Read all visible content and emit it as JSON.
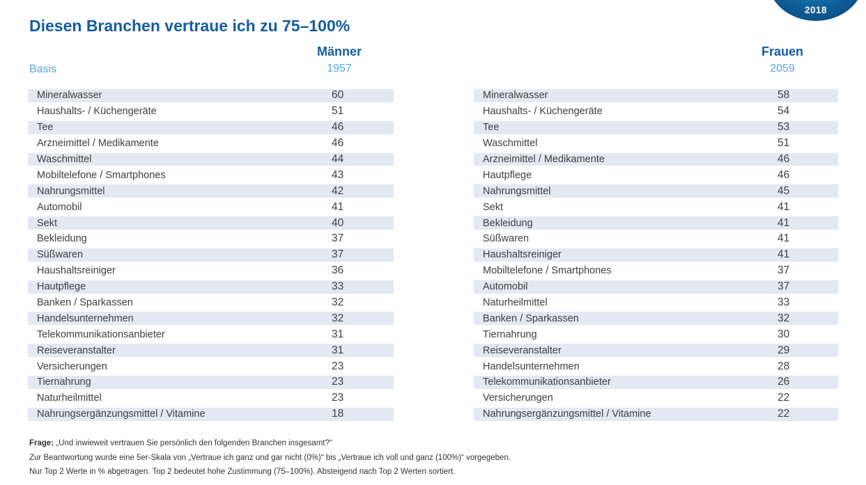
{
  "page": {
    "title": "Diesen Branchen vertraue ich zu 75–100%",
    "badge_year": "2018",
    "basis_label": "Basis",
    "colors": {
      "title_blue": "#135d9f",
      "light_blue": "#51a6dd",
      "row_shade": "#e4e8f2",
      "badge_blue": "#0d5c97",
      "text_gray": "#3e3e3e"
    }
  },
  "tables": {
    "men": {
      "header": "Männer",
      "basis": "1957",
      "rows": [
        {
          "label": "Mineralwasser",
          "value": "60"
        },
        {
          "label": "Haushalts- / Küchengeräte",
          "value": "51"
        },
        {
          "label": "Tee",
          "value": "46"
        },
        {
          "label": "Arzneimittel / Medikamente",
          "value": "46"
        },
        {
          "label": "Waschmittel",
          "value": "44"
        },
        {
          "label": "Mobiltelefone / Smartphones",
          "value": "43"
        },
        {
          "label": "Nahrungsmittel",
          "value": "42"
        },
        {
          "label": "Automobil",
          "value": "41"
        },
        {
          "label": "Sekt",
          "value": "40"
        },
        {
          "label": "Bekleidung",
          "value": "37"
        },
        {
          "label": "Süßwaren",
          "value": "37"
        },
        {
          "label": "Haushaltsreiniger",
          "value": "36"
        },
        {
          "label": "Hautpflege",
          "value": "33"
        },
        {
          "label": "Banken / Sparkassen",
          "value": "32"
        },
        {
          "label": "Handelsunternehmen",
          "value": "32"
        },
        {
          "label": "Telekommunikationsanbieter",
          "value": "31"
        },
        {
          "label": "Reiseveranstalter",
          "value": "31"
        },
        {
          "label": "Versicherungen",
          "value": "23"
        },
        {
          "label": "Tiernahrung",
          "value": "23"
        },
        {
          "label": "Naturheilmittel",
          "value": "23"
        },
        {
          "label": "Nahrungsergänzungsmittel / Vitamine",
          "value": "18"
        }
      ]
    },
    "women": {
      "header": "Frauen",
      "basis": "2059",
      "rows": [
        {
          "label": "Mineralwasser",
          "value": "58"
        },
        {
          "label": "Haushalts- / Küchengeräte",
          "value": "54"
        },
        {
          "label": "Tee",
          "value": "53"
        },
        {
          "label": "Waschmittel",
          "value": "51"
        },
        {
          "label": "Arzneimittel / Medikamente",
          "value": "46"
        },
        {
          "label": "Hautpflege",
          "value": "46"
        },
        {
          "label": "Nahrungsmittel",
          "value": "45"
        },
        {
          "label": "Sekt",
          "value": "41"
        },
        {
          "label": "Bekleidung",
          "value": "41"
        },
        {
          "label": "Süßwaren",
          "value": "41"
        },
        {
          "label": "Haushaltsreiniger",
          "value": "41"
        },
        {
          "label": "Mobiltelefone / Smartphones",
          "value": "37"
        },
        {
          "label": "Automobil",
          "value": "37"
        },
        {
          "label": "Naturheilmittel",
          "value": "33"
        },
        {
          "label": "Banken / Sparkassen",
          "value": "32"
        },
        {
          "label": "Tiernahrung",
          "value": "30"
        },
        {
          "label": "Reiseveranstalter",
          "value": "29"
        },
        {
          "label": "Handelsunternehmen",
          "value": "28"
        },
        {
          "label": "Telekommunikationsanbieter",
          "value": "26"
        },
        {
          "label": "Versicherungen",
          "value": "22"
        },
        {
          "label": "Nahrungsergänzungsmittel / Vitamine",
          "value": "22"
        }
      ]
    }
  },
  "footnote": {
    "line1_label": "Frage:",
    "line1_text": " „Und inwieweit vertrauen Sie persönlich den folgenden Branchen insgesamt?“",
    "line2": "Zur Beantwortung wurde eine 5er-Skala von „Vertraue ich ganz und gar nicht (0%)“ bis „Vertraue ich voll und ganz (100%)“ vorgegeben.",
    "line3": "Nur Top 2 Werte in % abgetragen. Top 2 bedeutet hohe Zustimmung (75–100%). Absteigend nach Top 2 Werten sortiert."
  },
  "chart_data": {
    "type": "table",
    "title": "Diesen Branchen vertraue ich zu 75–100%",
    "unit": "%",
    "series": [
      {
        "name": "Männer",
        "basis": 1957,
        "categories": [
          "Mineralwasser",
          "Haushalts- / Küchengeräte",
          "Tee",
          "Arzneimittel / Medikamente",
          "Waschmittel",
          "Mobiltelefone / Smartphones",
          "Nahrungsmittel",
          "Automobil",
          "Sekt",
          "Bekleidung",
          "Süßwaren",
          "Haushaltsreiniger",
          "Hautpflege",
          "Banken / Sparkassen",
          "Handelsunternehmen",
          "Telekommunikationsanbieter",
          "Reiseveranstalter",
          "Versicherungen",
          "Tiernahrung",
          "Naturheilmittel",
          "Nahrungsergänzungsmittel / Vitamine"
        ],
        "values": [
          60,
          51,
          46,
          46,
          44,
          43,
          42,
          41,
          40,
          37,
          37,
          36,
          33,
          32,
          32,
          31,
          31,
          23,
          23,
          23,
          18
        ]
      },
      {
        "name": "Frauen",
        "basis": 2059,
        "categories": [
          "Mineralwasser",
          "Haushalts- / Küchengeräte",
          "Tee",
          "Waschmittel",
          "Arzneimittel / Medikamente",
          "Hautpflege",
          "Nahrungsmittel",
          "Sekt",
          "Bekleidung",
          "Süßwaren",
          "Haushaltsreiniger",
          "Mobiltelefone / Smartphones",
          "Automobil",
          "Naturheilmittel",
          "Banken / Sparkassen",
          "Tiernahrung",
          "Reiseveranstalter",
          "Handelsunternehmen",
          "Telekommunikationsanbieter",
          "Versicherungen",
          "Nahrungsergänzungsmittel / Vitamine"
        ],
        "values": [
          58,
          54,
          53,
          51,
          46,
          46,
          45,
          41,
          41,
          41,
          41,
          37,
          37,
          33,
          32,
          30,
          29,
          28,
          26,
          22,
          22
        ]
      }
    ],
    "sort": "descending by Top-2 value",
    "legend_position": "column headers"
  }
}
